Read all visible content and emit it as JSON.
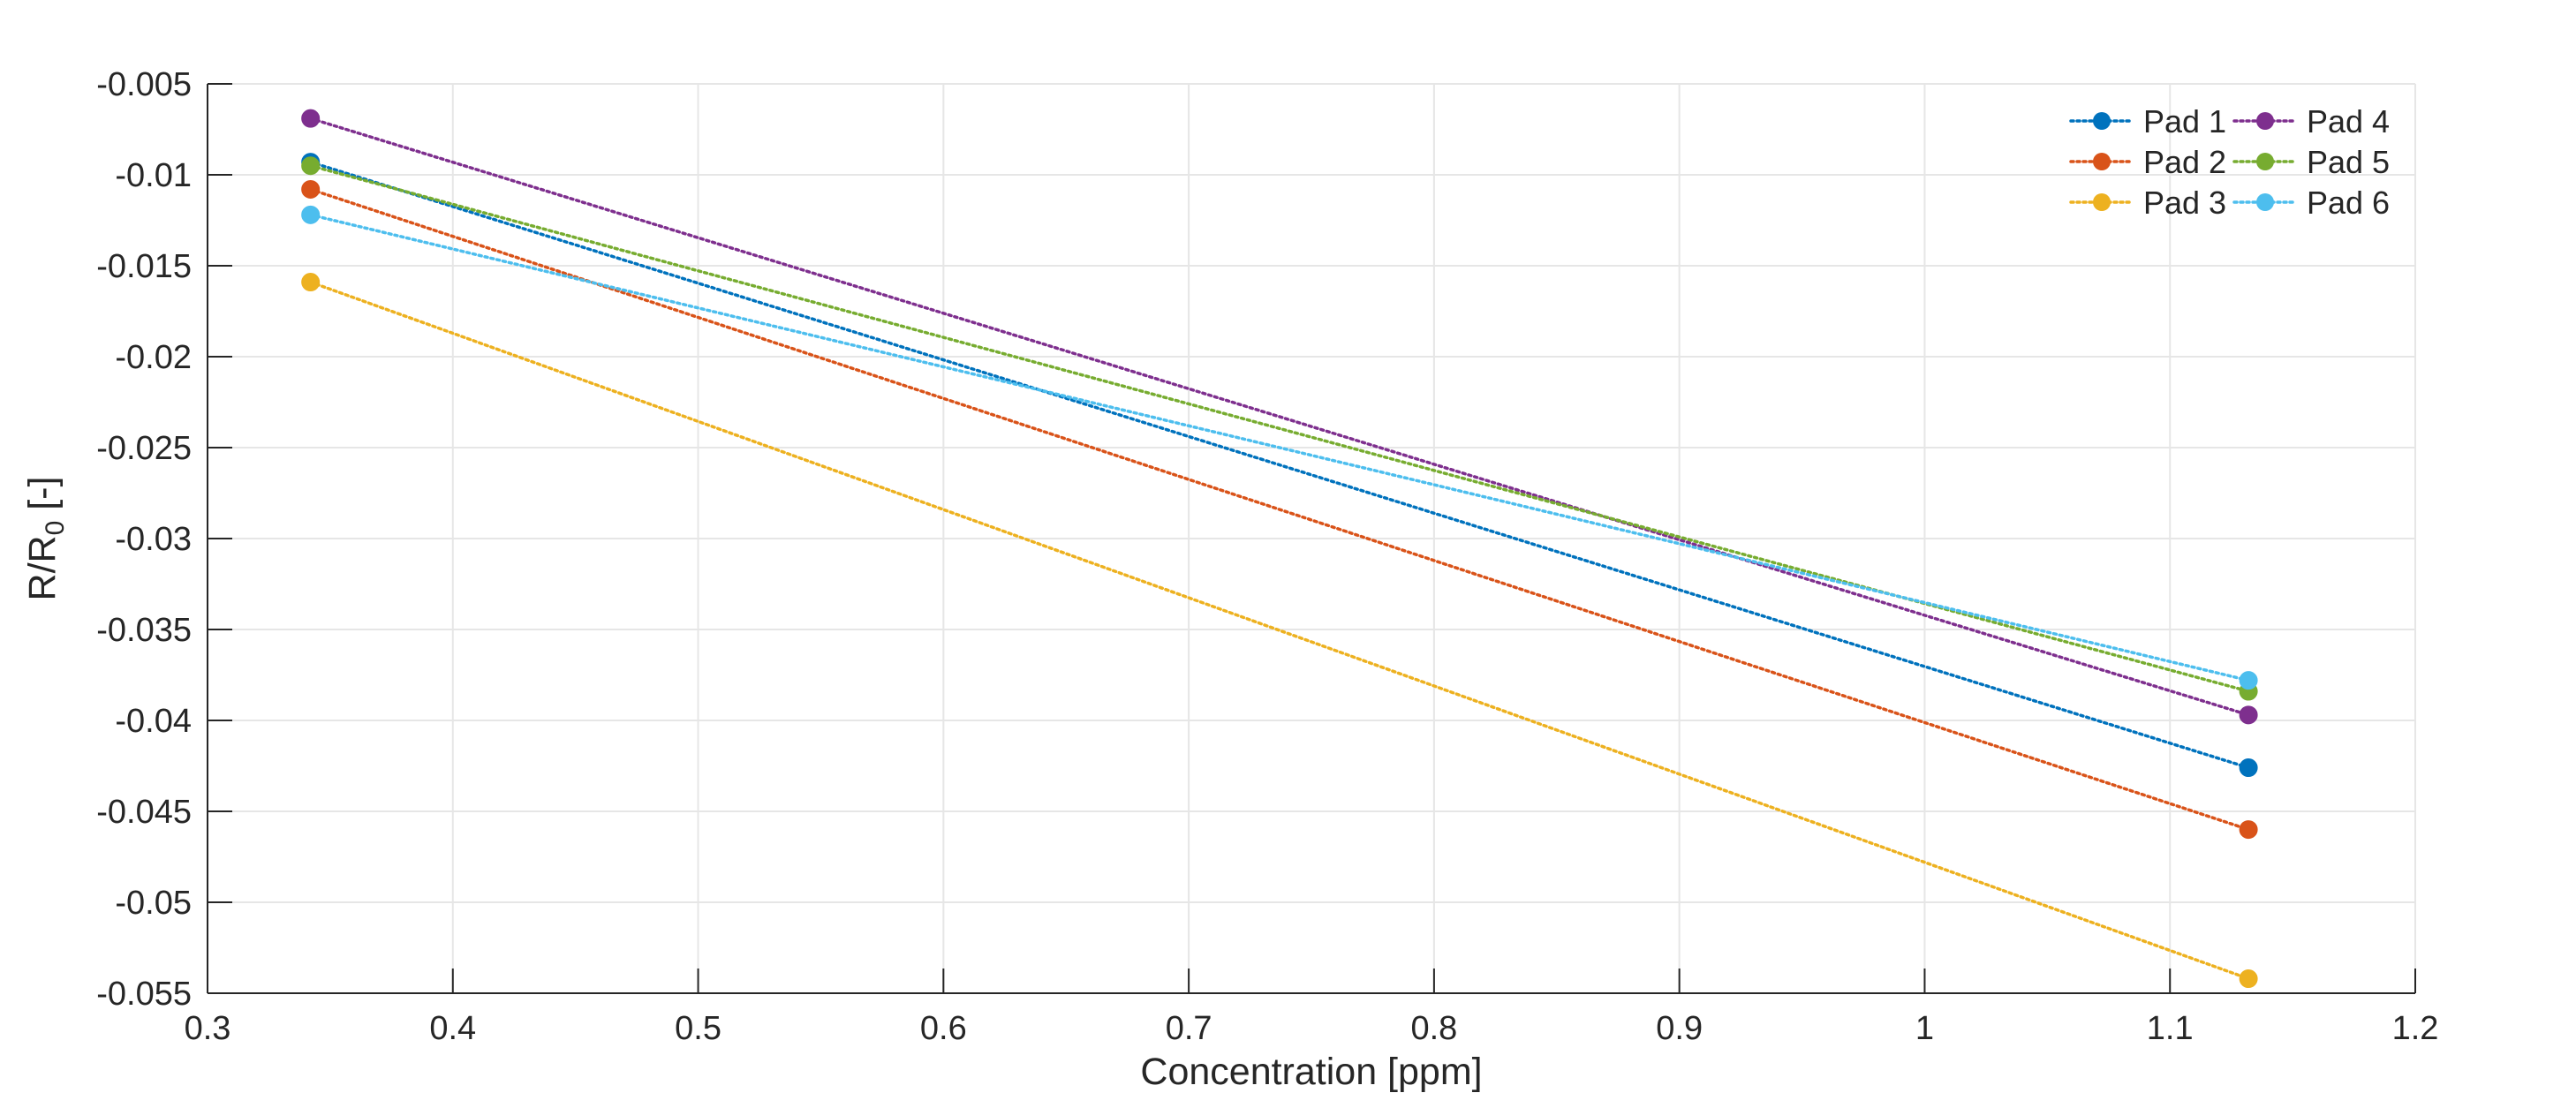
{
  "chart_data": {
    "type": "line",
    "title": "",
    "xlabel": "Concentration [ppm]",
    "ylabel_main": "R/R",
    "ylabel_sub": "0",
    "ylabel_suffix": " [-]",
    "xlim": [
      0.3,
      1.2
    ],
    "ylim": [
      -0.055,
      -0.005
    ],
    "xticks": [
      0.3,
      0.4,
      0.5,
      0.6,
      0.7,
      0.8,
      0.9,
      1.0,
      1.1,
      1.2
    ],
    "yticks": [
      -0.055,
      -0.05,
      -0.045,
      -0.04,
      -0.035,
      -0.03,
      -0.025,
      -0.02,
      -0.015,
      -0.01,
      -0.005
    ],
    "xtick_labels": [
      "0.3",
      "0.4",
      "0.5",
      "0.6",
      "0.7",
      "0.8",
      "0.9",
      "1",
      "1.1",
      "1.2"
    ],
    "ytick_labels": [
      "-0.055",
      "-0.05",
      "-0.045",
      "-0.04",
      "-0.035",
      "-0.03",
      "-0.025",
      "-0.02",
      "-0.015",
      "-0.01",
      "-0.005"
    ],
    "grid": true,
    "line_style": "dotted",
    "marker": "circle",
    "legend_position": "top-right",
    "legend_columns": 2,
    "x": [
      0.342,
      1.132
    ],
    "series": [
      {
        "name": "Pad 1",
        "color": "#0072BD",
        "values": [
          -0.0093,
          -0.0426
        ]
      },
      {
        "name": "Pad 2",
        "color": "#D95319",
        "values": [
          -0.0108,
          -0.046
        ]
      },
      {
        "name": "Pad 3",
        "color": "#EDB120",
        "values": [
          -0.0159,
          -0.0542
        ]
      },
      {
        "name": "Pad 4",
        "color": "#7E2F8E",
        "values": [
          -0.0069,
          -0.0397
        ]
      },
      {
        "name": "Pad 5",
        "color": "#77AC30",
        "values": [
          -0.0095,
          -0.0384
        ]
      },
      {
        "name": "Pad 6",
        "color": "#4DBEEE",
        "values": [
          -0.0122,
          -0.0378
        ]
      }
    ]
  }
}
